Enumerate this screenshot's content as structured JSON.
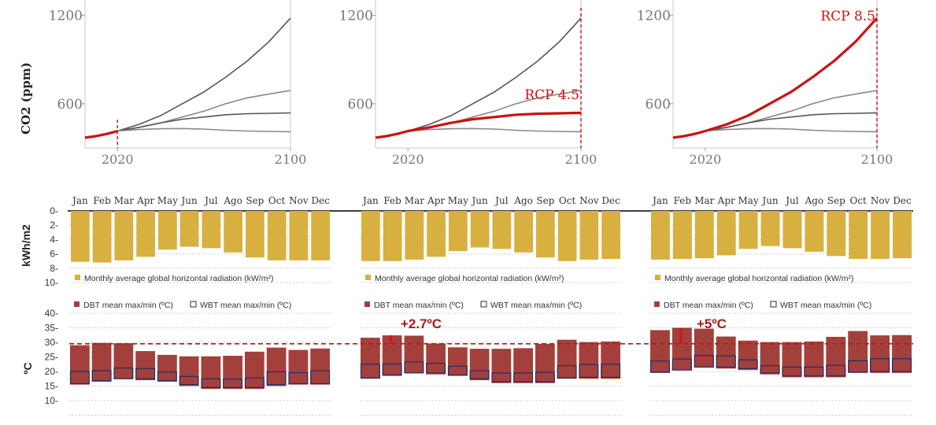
{
  "colors": {
    "highlight": "#cc1111",
    "curve": "#555555",
    "curve_light": "#8a8a8a",
    "radiation": "#d8b040",
    "dbt": "#a3403c",
    "wbt_border": "#1f2d66",
    "ref_line": "#b01a1a",
    "annotation": "#a31c1c"
  },
  "co2": {
    "ylabel": "CO2 (ppm)",
    "x_ticks": [
      "2020",
      "2100"
    ],
    "y_ticks": [
      "600",
      "1200"
    ],
    "panels": [
      {
        "label": "",
        "marker_year": 2020
      },
      {
        "label": "RCP 4.5",
        "marker_year": 2100
      },
      {
        "label": "RCP 8.5",
        "marker_year": 2100
      }
    ]
  },
  "chart_data": [
    {
      "type": "line",
      "title": "",
      "ylabel": "CO2 (ppm)",
      "xlim": [
        2005,
        2100
      ],
      "ylim": [
        300,
        1250
      ],
      "x": [
        2005,
        2010,
        2015,
        2020,
        2030,
        2040,
        2050,
        2060,
        2070,
        2080,
        2090,
        2100
      ],
      "series": [
        {
          "values": [
            370,
            380,
            395,
            415,
            460,
            520,
            600,
            680,
            780,
            890,
            1020,
            1180
          ]
        },
        {
          "values": [
            370,
            380,
            395,
            415,
            440,
            470,
            510,
            550,
            600,
            640,
            665,
            690
          ]
        },
        {
          "values": [
            370,
            380,
            395,
            415,
            440,
            470,
            495,
            510,
            525,
            532,
            535,
            538
          ]
        },
        {
          "values": [
            370,
            380,
            395,
            415,
            425,
            430,
            432,
            428,
            420,
            415,
            412,
            410
          ]
        }
      ],
      "panel_highlights": [
        {
          "label": "",
          "x": [
            2005,
            2010,
            2015,
            2020
          ],
          "values": [
            370,
            380,
            395,
            415
          ]
        },
        {
          "label": "RCP 4.5",
          "x": [
            2005,
            2010,
            2015,
            2020,
            2030,
            2040,
            2050,
            2060,
            2070,
            2080,
            2090,
            2100
          ],
          "values": [
            370,
            380,
            395,
            415,
            440,
            470,
            495,
            510,
            525,
            532,
            535,
            538
          ]
        },
        {
          "label": "RCP 8.5",
          "x": [
            2005,
            2010,
            2015,
            2020,
            2030,
            2040,
            2050,
            2060,
            2070,
            2080,
            2090,
            2100
          ],
          "values": [
            370,
            380,
            395,
            415,
            460,
            520,
            600,
            680,
            780,
            890,
            1020,
            1180
          ]
        }
      ]
    },
    {
      "type": "bar",
      "ylabel": "kWh/m2",
      "legend": "Monthly average global horizontal radiation (kW/m²)",
      "ylim": [
        0,
        10
      ],
      "y_ticks": [
        "0-",
        "2-",
        "4-",
        "6-",
        "8-",
        "10-"
      ],
      "categories": [
        "Jan",
        "Feb",
        "Mar",
        "Apr",
        "May",
        "Jun",
        "Jul",
        "Ago",
        "Sep",
        "Oct",
        "Nov",
        "Dec"
      ],
      "series": [
        {
          "values": [
            7.1,
            7.2,
            6.9,
            6.4,
            5.4,
            5.0,
            5.2,
            5.8,
            6.5,
            6.9,
            6.9,
            6.9
          ]
        },
        {
          "values": [
            7.0,
            7.0,
            6.8,
            6.4,
            5.6,
            5.1,
            5.3,
            5.8,
            6.5,
            7.0,
            6.8,
            6.7
          ]
        },
        {
          "values": [
            6.8,
            6.7,
            6.6,
            6.2,
            5.3,
            4.9,
            5.2,
            5.7,
            6.3,
            6.7,
            6.7,
            6.6
          ]
        }
      ]
    },
    {
      "type": "bar",
      "ylabel": "ºC",
      "legend": [
        "DBT mean max/min (ºC)",
        "WBT mean max/min (ºC)"
      ],
      "ylim": [
        5,
        42
      ],
      "y_ticks": [
        "40-",
        "35-",
        "30-",
        "25-",
        "20-",
        "15-",
        "10-"
      ],
      "reference_line": 29.5,
      "categories": [
        "Jan",
        "Feb",
        "Mar",
        "Apr",
        "May",
        "Jun",
        "Jul",
        "Ago",
        "Sep",
        "Oct",
        "Nov",
        "Dec"
      ],
      "panels": [
        {
          "annotation": "",
          "dbt_max": [
            29,
            29.8,
            29.7,
            27,
            25.7,
            25.2,
            25.2,
            25.4,
            26.8,
            28.2,
            27.4,
            27.9
          ],
          "dbt_min": [
            15.5,
            16.5,
            17.5,
            17,
            16.5,
            15,
            14,
            14,
            14,
            15,
            15.5,
            15.5
          ],
          "wbt_max": [
            20,
            20.3,
            21.2,
            21,
            19.8,
            18.3,
            17.5,
            17.4,
            17.8,
            19.9,
            19.6,
            20.2
          ],
          "wbt_min": [
            15.8,
            16.8,
            17.5,
            17.5,
            16.8,
            15.5,
            14.5,
            14.5,
            14.5,
            15.5,
            15.8,
            15.8
          ]
        },
        {
          "annotation": "+2.7ºC",
          "dbt_max": [
            31.6,
            32.4,
            32.3,
            29.6,
            28.3,
            27.8,
            27.8,
            28.0,
            29.5,
            30.9,
            30.1,
            30.3
          ],
          "dbt_min": [
            17.5,
            18.5,
            19.5,
            19,
            18.5,
            17,
            16,
            16,
            16,
            17.5,
            17.5,
            17.5
          ],
          "wbt_max": [
            22.5,
            22.6,
            23.3,
            22.8,
            21.8,
            20.2,
            19.5,
            19.5,
            19.7,
            22.0,
            22.4,
            22.5
          ],
          "wbt_min": [
            17.8,
            18.8,
            19.5,
            19.5,
            18.8,
            17.5,
            16.5,
            16.5,
            16.5,
            17.8,
            18.0,
            18.0
          ]
        },
        {
          "annotation": "+5ºC",
          "dbt_max": [
            34.2,
            35,
            34.7,
            32,
            30.6,
            30.1,
            30.1,
            30.3,
            31.9,
            33.9,
            32.4,
            32.5
          ],
          "dbt_min": [
            19.5,
            20.5,
            21.5,
            21,
            20.5,
            19,
            18,
            18,
            18,
            19.5,
            19.5,
            19.5
          ],
          "wbt_max": [
            23.6,
            24.3,
            25.5,
            25.4,
            24.0,
            22.0,
            21.5,
            21.5,
            22.1,
            23.7,
            24.4,
            24.4
          ],
          "wbt_min": [
            19.8,
            20.5,
            21.5,
            21.5,
            21.0,
            19.5,
            18.5,
            18.5,
            18.5,
            19.8,
            20.0,
            20.0
          ]
        }
      ]
    }
  ]
}
